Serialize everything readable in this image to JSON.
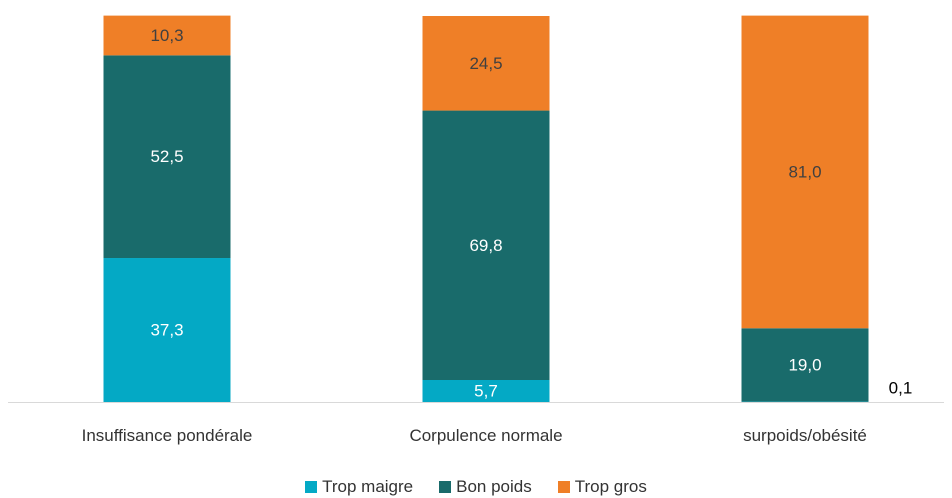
{
  "chart_data": {
    "type": "bar",
    "stacked": true,
    "categories": [
      "Insuffisance pondérale",
      "Corpulence normale",
      "surpoids/obésité"
    ],
    "series": [
      {
        "name": "Trop maigre",
        "color": "#04a9c5",
        "values": [
          37.3,
          5.7,
          0.1
        ],
        "labels": [
          "37,3",
          "5,7",
          "0,1"
        ]
      },
      {
        "name": "Bon poids",
        "color": "#196b6b",
        "values": [
          52.5,
          69.8,
          19.0
        ],
        "labels": [
          "52,5",
          "69,8",
          "19,0"
        ]
      },
      {
        "name": "Trop gros",
        "color": "#ef7f27",
        "values": [
          10.3,
          24.5,
          81.0
        ],
        "labels": [
          "10,3",
          "24,5",
          "81,0"
        ]
      }
    ],
    "ylim": [
      0,
      100
    ],
    "grid": false,
    "legend_position": "bottom"
  }
}
